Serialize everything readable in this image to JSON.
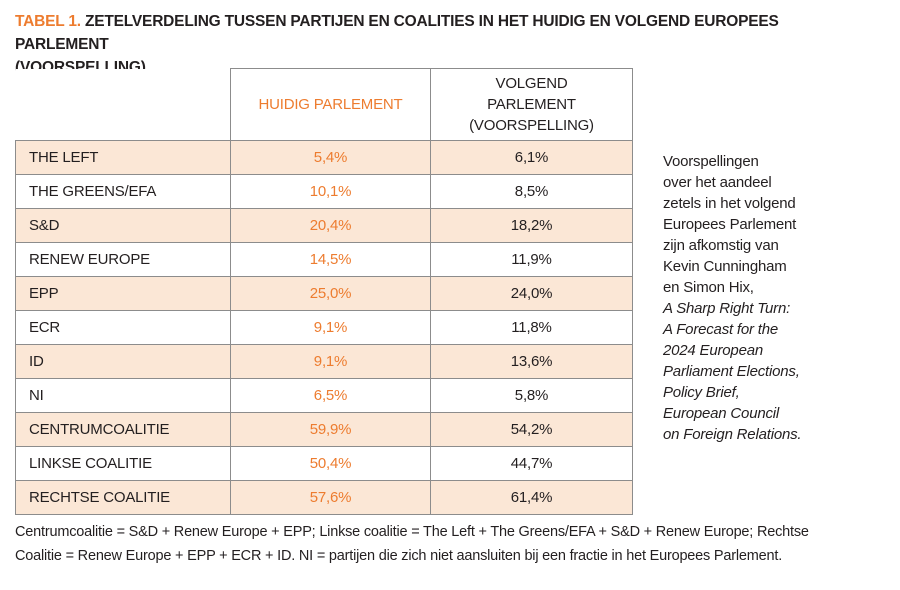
{
  "title": {
    "tag": "TABEL 1.",
    "text": " ZETELVERDELING TUSSEN PARTIJEN EN COALITIES IN HET HUIDIG EN VOLGEND EUROPEES PARLEMENT\n(VOORSPELLING)"
  },
  "table": {
    "header": {
      "current": "HUIDIG PARLEMENT",
      "next": "VOLGEND PARLEMENT (VOORSPELLING)"
    },
    "rows": [
      {
        "label": "THE LEFT",
        "current": "5,4%",
        "next": "6,1%"
      },
      {
        "label": "THE GREENS/EFA",
        "current": "10,1%",
        "next": "8,5%"
      },
      {
        "label": "S&D",
        "current": "20,4%",
        "next": "18,2%"
      },
      {
        "label": "RENEW EUROPE",
        "current": "14,5%",
        "next": "11,9%"
      },
      {
        "label": "EPP",
        "current": "25,0%",
        "next": "24,0%"
      },
      {
        "label": "ECR",
        "current": "9,1%",
        "next": "11,8%"
      },
      {
        "label": "ID",
        "current": "9,1%",
        "next": "13,6%"
      },
      {
        "label": "NI",
        "current": "6,5%",
        "next": "5,8%"
      },
      {
        "label": "CENTRUMCOALITIE",
        "current": "59,9%",
        "next": "54,2%"
      },
      {
        "label": "LINKSE COALITIE",
        "current": "50,4%",
        "next": "44,7%"
      },
      {
        "label": "RECHTSE COALITIE",
        "current": "57,6%",
        "next": "61,4%"
      }
    ]
  },
  "side_note": {
    "lines": [
      "Voorspellingen",
      "over het aandeel",
      "zetels in het volgend",
      "Europees Parlement",
      "zijn afkomstig van",
      "Kevin Cunningham",
      "en Simon Hix,",
      "A Sharp Right Turn:",
      "A Forecast for the",
      "2024 European",
      "Parliament Elections,",
      "Policy Brief,",
      "European Council",
      "on Foreign Relations."
    ]
  },
  "footnote": "Centrumcoalitie = S&D + Renew Europe + EPP; Linkse coalitie = The Left + The Greens/EFA + S&D + Renew Europe; Rechtse\nCoalitie = Renew Europe + EPP + ECR + ID. NI = partijen die zich niet aansluiten bij een fractie in het Europees Parlement.",
  "colors": {
    "accent": "#ED7C2F",
    "row_shaded": "#FBE7D6",
    "border": "#8C8C8C",
    "text": "#231F20"
  }
}
